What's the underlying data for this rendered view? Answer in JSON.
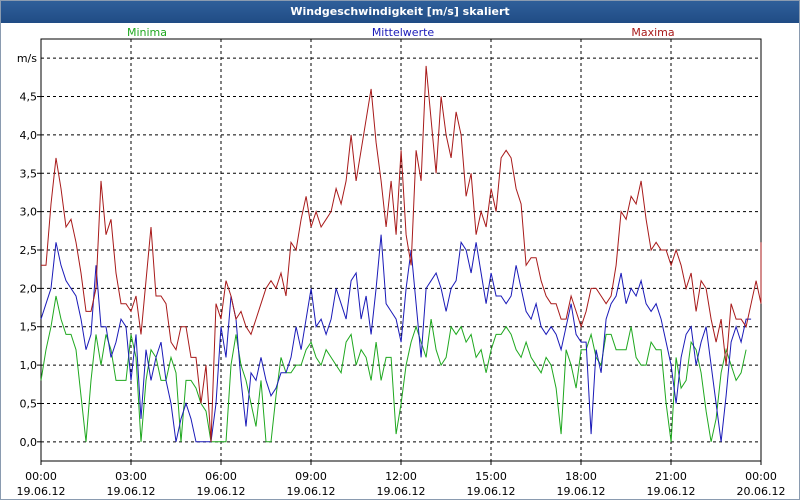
{
  "window": {
    "title": "Windgeschwindigkeit [m/s] skaliert"
  },
  "chart_data": {
    "type": "line",
    "title": "Windgeschwindigkeit [m/s] skaliert",
    "ylabel": "m/s",
    "xlabel": "",
    "ylim": [
      -0.25,
      5.25
    ],
    "xlim": [
      0,
      24
    ],
    "grid": true,
    "yticks": [
      {
        "value": 0,
        "label": "0,0"
      },
      {
        "value": 0.5,
        "label": "0,5"
      },
      {
        "value": 1,
        "label": "1,0"
      },
      {
        "value": 1.5,
        "label": "1,5"
      },
      {
        "value": 2,
        "label": "2,0"
      },
      {
        "value": 2.5,
        "label": "2,5"
      },
      {
        "value": 3,
        "label": "3,0"
      },
      {
        "value": 3.5,
        "label": "3,5"
      },
      {
        "value": 4,
        "label": "4,0"
      },
      {
        "value": 4.5,
        "label": "4,5"
      }
    ],
    "xticks": [
      {
        "value": 0,
        "time": "00:00",
        "date": "19.06.12"
      },
      {
        "value": 3,
        "time": "03:00",
        "date": "19.06.12"
      },
      {
        "value": 6,
        "time": "06:00",
        "date": "19.06.12"
      },
      {
        "value": 9,
        "time": "09:00",
        "date": "19.06.12"
      },
      {
        "value": 12,
        "time": "12:00",
        "date": "19.06.12"
      },
      {
        "value": 15,
        "time": "15:00",
        "date": "19.06.12"
      },
      {
        "value": 18,
        "time": "18:00",
        "date": "19.06.12"
      },
      {
        "value": 21,
        "time": "21:00",
        "date": "19.06.12"
      },
      {
        "value": 24,
        "time": "00:00",
        "date": "20.06.12"
      }
    ],
    "series": [
      {
        "name": "Minima",
        "color": "#1fa81f",
        "legend_position": "left",
        "step_hours": 0.1667,
        "values": [
          0.8,
          1.2,
          1.5,
          1.9,
          1.6,
          1.4,
          1.4,
          1.2,
          0.6,
          0.0,
          0.8,
          1.4,
          1.0,
          1.4,
          1.2,
          0.8,
          0.8,
          0.8,
          1.4,
          1.1,
          0.0,
          0.8,
          1.2,
          1.1,
          0.8,
          0.8,
          1.1,
          0.9,
          0.0,
          0.8,
          0.8,
          0.7,
          0.5,
          0.4,
          0.0,
          0.0,
          0.0,
          0.0,
          1.0,
          1.4,
          1.0,
          0.8,
          0.5,
          0.2,
          0.8,
          0.0,
          0.0,
          0.6,
          1.1,
          0.9,
          0.9,
          1.0,
          1.0,
          1.2,
          1.3,
          1.1,
          1.0,
          1.2,
          1.1,
          1.0,
          0.9,
          1.3,
          1.4,
          1.0,
          1.2,
          1.1,
          0.8,
          1.3,
          0.8,
          1.1,
          1.1,
          0.1,
          0.5,
          1.0,
          1.3,
          1.5,
          1.3,
          1.1,
          1.6,
          1.2,
          1.0,
          1.1,
          1.5,
          1.4,
          1.5,
          1.3,
          1.4,
          1.1,
          1.2,
          0.9,
          1.2,
          1.4,
          1.4,
          1.5,
          1.4,
          1.2,
          1.1,
          1.3,
          1.1,
          1.0,
          0.9,
          1.1,
          1.0,
          0.7,
          0.1,
          1.2,
          1.0,
          0.7,
          1.2,
          1.2,
          1.4,
          1.1,
          1.0,
          1.4,
          1.4,
          1.2,
          1.2,
          1.2,
          1.5,
          1.1,
          1.0,
          1.0,
          1.3,
          1.2,
          1.2,
          0.5,
          0.0,
          1.1,
          0.7,
          0.8,
          1.3,
          1.2,
          0.9,
          0.4,
          0.0,
          0.3,
          0.9,
          1.2,
          1.0,
          0.8,
          0.9,
          1.2
        ]
      },
      {
        "name": "Mittelwerte",
        "color": "#1a1ab8",
        "legend_position": "center",
        "step_hours": 0.1667,
        "values": [
          1.6,
          1.8,
          2.0,
          2.6,
          2.3,
          2.1,
          2.0,
          1.9,
          1.6,
          1.2,
          1.4,
          2.3,
          1.5,
          1.5,
          1.1,
          1.3,
          1.6,
          1.5,
          0.8,
          1.4,
          0.3,
          1.2,
          0.8,
          1.1,
          1.3,
          0.8,
          0.5,
          0.0,
          0.3,
          0.5,
          0.3,
          0.0,
          0.0,
          0.0,
          0.0,
          0.5,
          1.5,
          1.1,
          1.9,
          1.6,
          0.8,
          0.2,
          0.9,
          0.8,
          1.1,
          0.8,
          0.6,
          0.7,
          0.9,
          0.9,
          1.1,
          1.5,
          1.2,
          1.6,
          2.0,
          1.5,
          1.6,
          1.4,
          1.6,
          2.0,
          1.8,
          1.6,
          2.1,
          2.2,
          1.6,
          1.9,
          1.4,
          2.0,
          2.7,
          1.8,
          1.7,
          1.6,
          1.3,
          2.0,
          2.5,
          1.8,
          1.1,
          2.0,
          2.1,
          2.2,
          2.0,
          1.7,
          2.0,
          2.1,
          2.6,
          2.5,
          2.2,
          2.6,
          2.2,
          1.8,
          2.2,
          1.9,
          1.9,
          1.8,
          1.9,
          2.3,
          2.0,
          1.7,
          1.6,
          1.8,
          1.5,
          1.4,
          1.5,
          1.4,
          1.2,
          1.5,
          1.8,
          1.4,
          1.3,
          1.3,
          0.1,
          1.2,
          0.9,
          1.6,
          1.8,
          1.9,
          2.2,
          1.8,
          2.0,
          1.9,
          2.1,
          1.8,
          1.7,
          1.8,
          1.6,
          1.3,
          1.0,
          0.5,
          1.1,
          1.4,
          1.5,
          1.0,
          1.3,
          1.5,
          1.0,
          0.5,
          0.0,
          0.6,
          1.3,
          1.5,
          1.3,
          1.6,
          1.6
        ]
      },
      {
        "name": "Maxima",
        "color": "#a81a1a",
        "legend_position": "right",
        "step_hours": 0.1667,
        "values": [
          2.3,
          2.3,
          3.1,
          3.7,
          3.3,
          2.8,
          2.9,
          2.6,
          2.2,
          1.7,
          1.7,
          2.0,
          3.4,
          2.7,
          2.9,
          2.2,
          1.8,
          1.8,
          1.7,
          1.9,
          1.4,
          2.1,
          2.8,
          1.9,
          1.9,
          1.8,
          1.3,
          1.2,
          1.5,
          1.5,
          1.1,
          1.1,
          0.5,
          1.0,
          0.0,
          1.8,
          1.6,
          2.1,
          1.9,
          1.6,
          1.7,
          1.5,
          1.4,
          1.6,
          1.8,
          2.0,
          2.1,
          2.0,
          2.2,
          1.9,
          2.6,
          2.5,
          2.9,
          3.2,
          2.8,
          3.0,
          2.8,
          2.9,
          3.0,
          3.3,
          3.1,
          3.4,
          4.0,
          3.4,
          3.8,
          4.2,
          4.6,
          3.9,
          3.4,
          2.8,
          3.4,
          2.7,
          3.8,
          2.7,
          2.3,
          3.8,
          3.4,
          4.9,
          4.2,
          3.5,
          4.5,
          4.0,
          3.7,
          4.3,
          4.0,
          3.2,
          3.5,
          2.7,
          3.0,
          2.8,
          3.3,
          3.0,
          3.7,
          3.8,
          3.7,
          3.3,
          3.1,
          2.3,
          2.4,
          2.4,
          2.1,
          1.9,
          1.8,
          1.8,
          1.6,
          1.6,
          1.9,
          1.7,
          1.5,
          1.7,
          2.0,
          2.0,
          1.9,
          1.8,
          1.9,
          2.3,
          3.0,
          2.9,
          3.2,
          3.1,
          3.4,
          2.9,
          2.5,
          2.6,
          2.5,
          2.5,
          2.3,
          2.5,
          2.3,
          2.0,
          2.2,
          1.7,
          2.1,
          2.0,
          1.6,
          1.3,
          1.6,
          1.0,
          1.8,
          1.6,
          1.6,
          1.5,
          1.8,
          2.1,
          1.8,
          2.3,
          2.6
        ]
      }
    ]
  }
}
